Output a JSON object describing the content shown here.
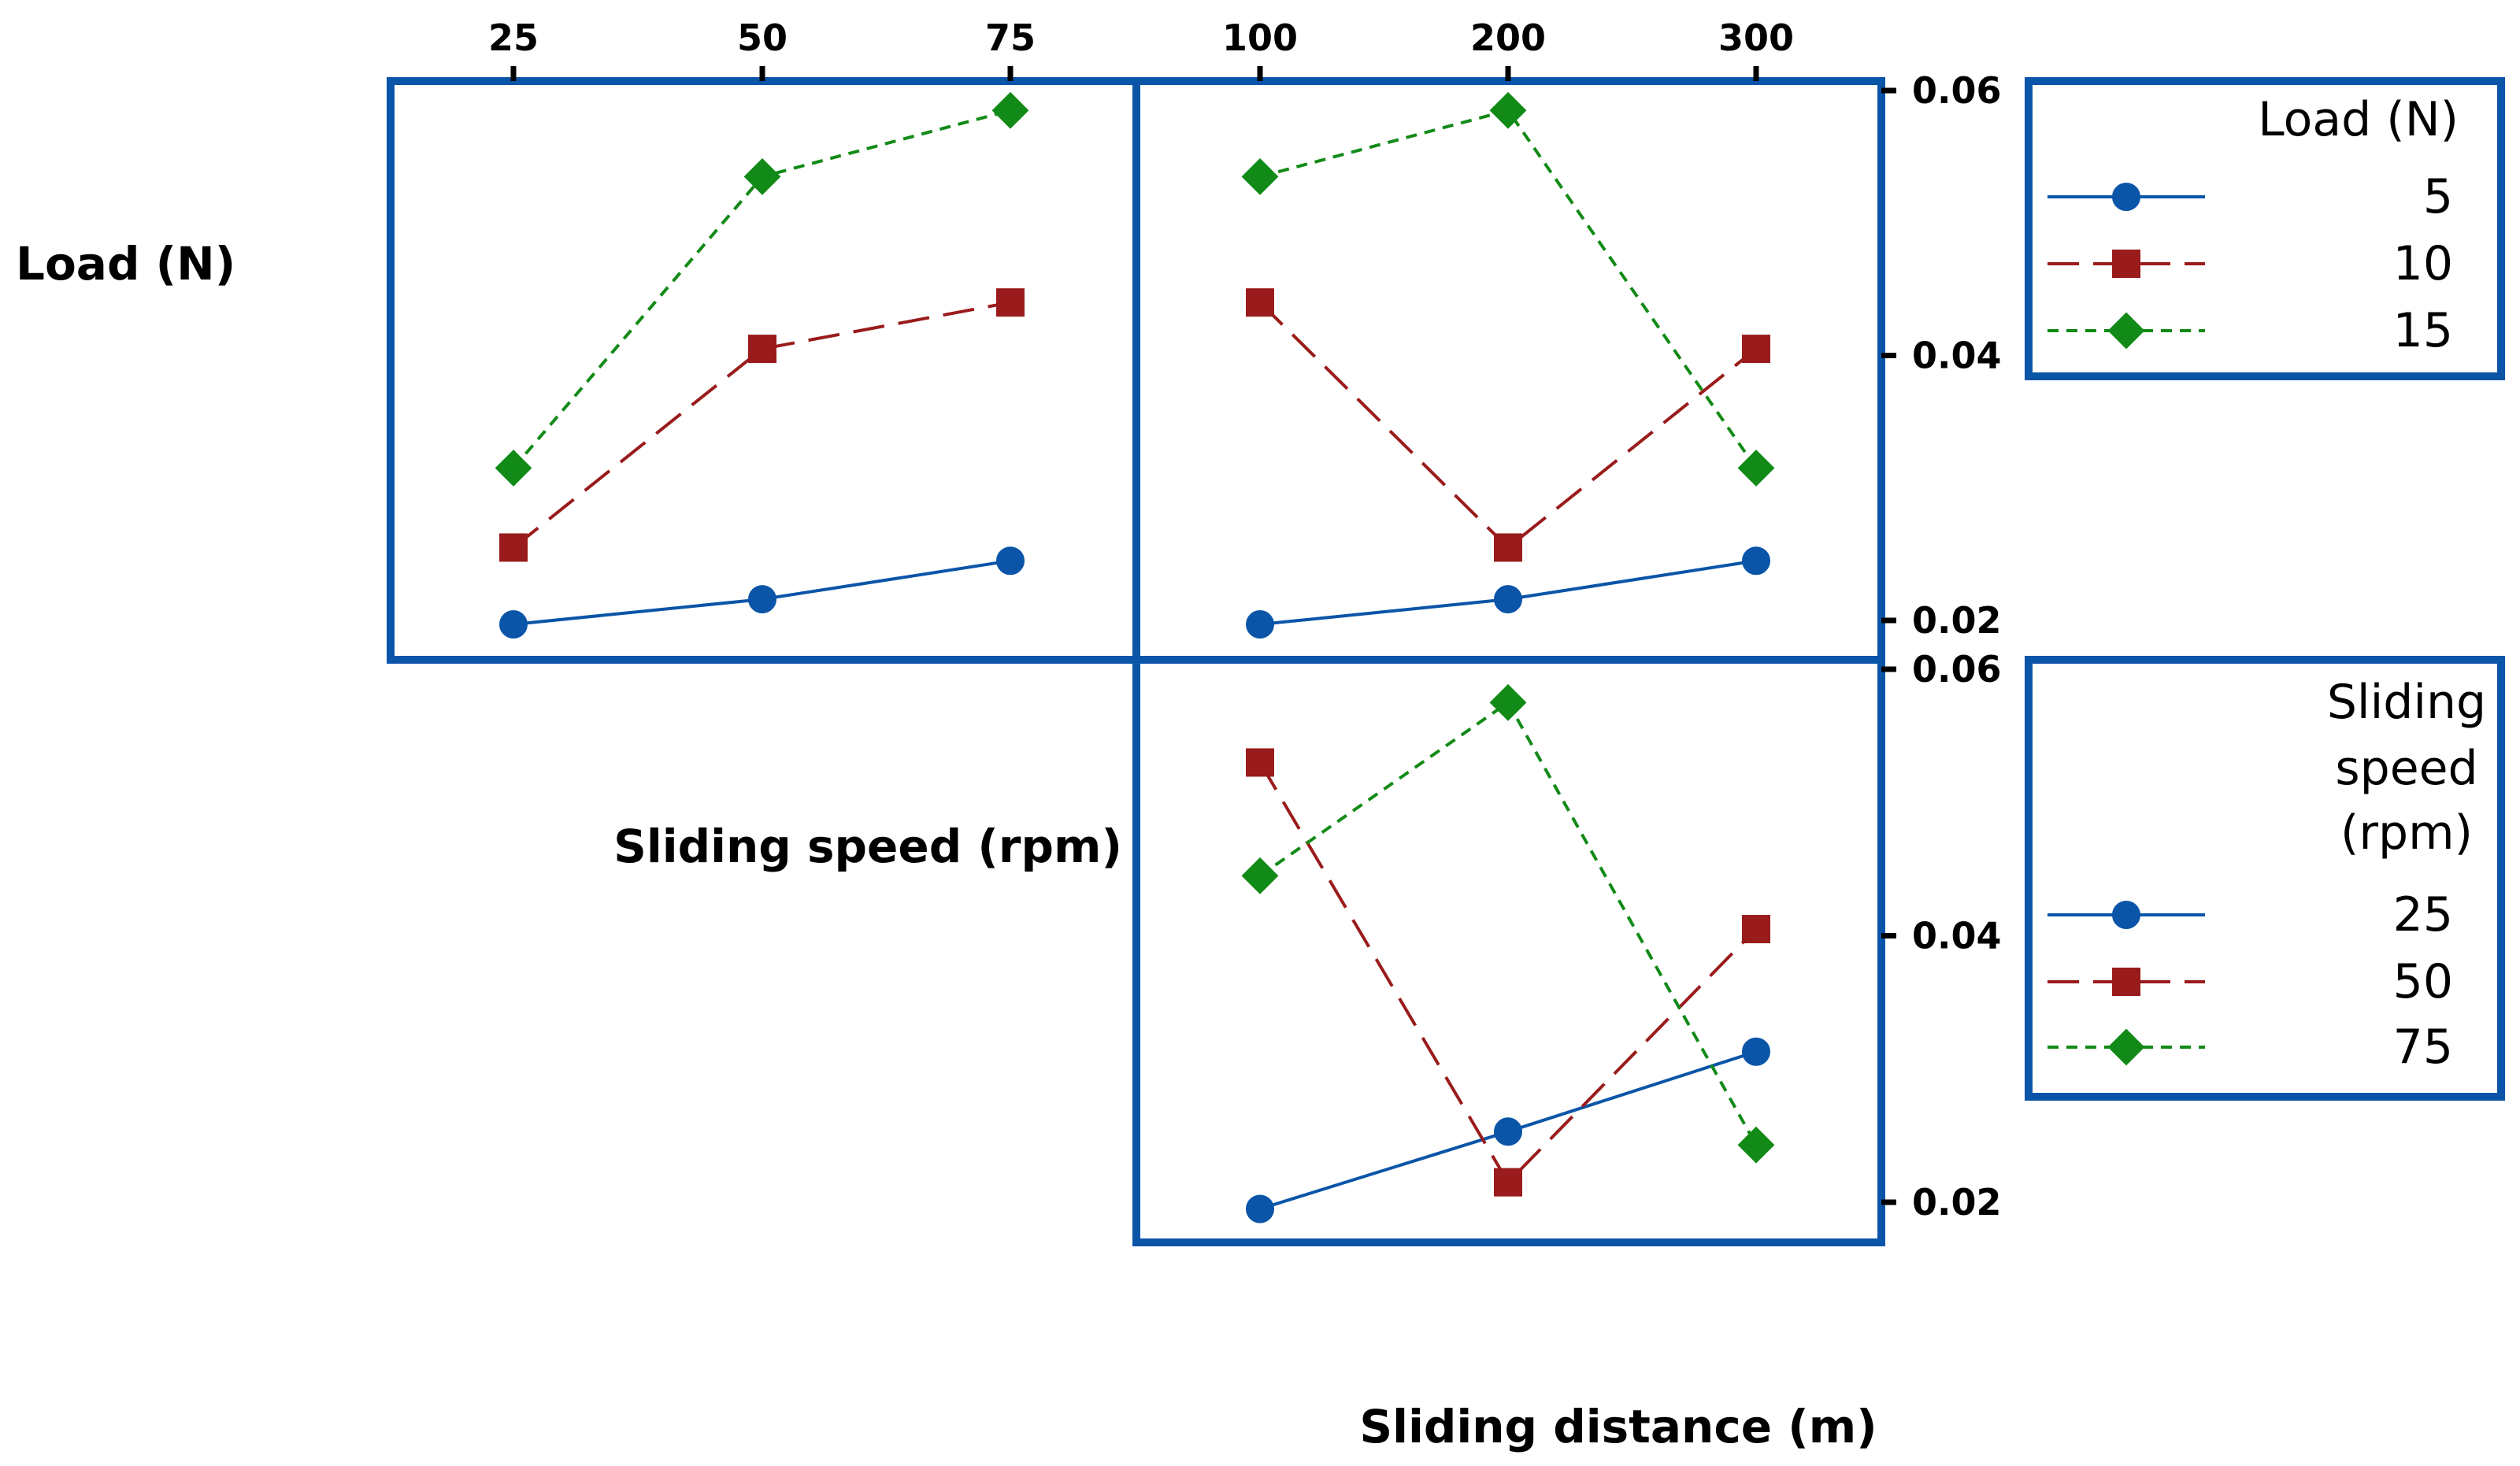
{
  "chart_data": {
    "type": "line",
    "title": "",
    "row_labels": [
      "Load (N)",
      "Sliding speed (rpm)"
    ],
    "xlabel": "Sliding distance (m)",
    "ylim": [
      0.0175,
      0.0615
    ],
    "y_ticks": [
      "0.06",
      "0.04",
      "0.02"
    ],
    "panels": [
      {
        "id": "load_x_speed",
        "row_factor": "Load (N)",
        "x_factor": "Sliding speed (rpm)",
        "x": [
          "25",
          "50",
          "75"
        ],
        "series": [
          {
            "name": "5",
            "values": [
              0.0197,
              0.0216,
              0.0245
            ]
          },
          {
            "name": "10",
            "values": [
              0.0255,
              0.0405,
              0.044
            ]
          },
          {
            "name": "15",
            "values": [
              0.0315,
              0.0535,
              0.0585
            ]
          }
        ]
      },
      {
        "id": "load_x_distance",
        "row_factor": "Load (N)",
        "x_factor": "Sliding distance (m)",
        "x": [
          "100",
          "200",
          "300"
        ],
        "series": [
          {
            "name": "5",
            "values": [
              0.0197,
              0.0216,
              0.0245
            ]
          },
          {
            "name": "10",
            "values": [
              0.044,
              0.0255,
              0.0405
            ]
          },
          {
            "name": "15",
            "values": [
              0.0535,
              0.0585,
              0.0315
            ]
          }
        ]
      },
      {
        "id": "speed_x_distance",
        "row_factor": "Sliding speed (rpm)",
        "x_factor": "Sliding distance (m)",
        "x": [
          "100",
          "200",
          "300"
        ],
        "series": [
          {
            "name": "25",
            "values": [
              0.0195,
              0.0253,
              0.0313
            ]
          },
          {
            "name": "50",
            "values": [
              0.053,
              0.0215,
              0.0405
            ]
          },
          {
            "name": "75",
            "values": [
              0.0445,
              0.0575,
              0.0243
            ]
          }
        ]
      }
    ],
    "legends": [
      {
        "title": [
          "Load (N)"
        ],
        "entries": [
          "5",
          "10",
          "15"
        ]
      },
      {
        "title": [
          "Sliding",
          "speed",
          "(rpm)"
        ],
        "entries": [
          "25",
          "50",
          "75"
        ]
      }
    ],
    "series_styles": [
      {
        "color": "#0b55a8",
        "marker": "circle",
        "dash": "solid"
      },
      {
        "color": "#9a1b1b",
        "marker": "square",
        "dash": "longdash"
      },
      {
        "color": "#128a17",
        "marker": "diamond",
        "dash": "shortdash"
      }
    ],
    "frame_color": "#0b55a8"
  }
}
